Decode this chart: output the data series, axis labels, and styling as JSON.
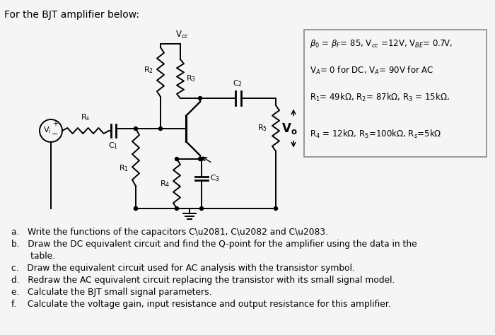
{
  "title": "For the BJT amplifier below:",
  "background_color": "#f0f0f0",
  "box_line1": "\\u03b2\\u2080 = \\u03b2F= 85, Vcc =12V, VBE= 0.7V,",
  "box_line2": "VA= 0 for DC, VA= 90V for AC",
  "box_line3": "R1= 49k\\u03a9, R2= 87k\\u03a9, R3 = 15k\\u03a9,",
  "box_line4": "R4 = 12k\\u03a9, R5=100k\\u03a9, Rs=5k\\u03a9",
  "q_a": "a.   Write the functions of the capacitors C\\u2081, C\\u2082 and C\\u2083.",
  "q_b1": "b.   Draw the DC equivalent circuit and find the Q-point for the amplifier using the data in the",
  "q_b2": "       table.",
  "q_c": "c.   Draw the equivalent circuit used for AC analysis with the transistor symbol.",
  "q_d": "d.   Redraw the AC equivalent circuit replacing the transistor with its small signal model.",
  "q_e": "e.   Calculate the BJT small signal parameters.",
  "q_f": "f.    Calculate the voltage gain, input resistance and output resistance for this amplifier."
}
